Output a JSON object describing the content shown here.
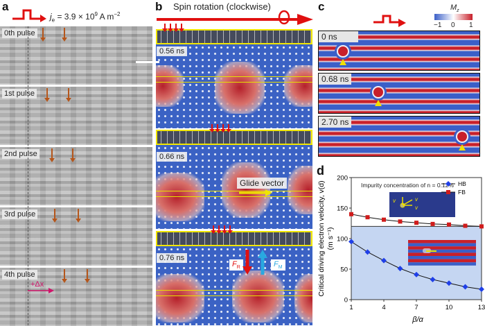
{
  "panel_labels": {
    "a": "a",
    "b": "b",
    "c": "c",
    "d": "d"
  },
  "panel_a": {
    "current": {
      "j": "j",
      "sub": "e",
      "eq": " = 3.9 × 10",
      "exp": "9",
      "unit": " A m",
      "unit_exp": "−2"
    },
    "pulses": [
      "0th pulse",
      "1st pulse",
      "2nd pulse",
      "3rd pulse",
      "4th pulse"
    ],
    "displacement": "+Δx"
  },
  "panel_b": {
    "title": "Spin rotation (clockwise)",
    "times": [
      "0.56 ns",
      "0.66 ns",
      "0.76 ns"
    ],
    "glide_vector": "Glide vector",
    "force_r": {
      "F": "F",
      "sub": "R"
    },
    "force_m": {
      "F": "F",
      "sub": "M"
    },
    "colors": {
      "force_r": "#e01010",
      "force_m": "#29a8e0",
      "highlight": "#f0e600"
    }
  },
  "panel_c": {
    "colorbar": {
      "label": "M",
      "label_sub": "z",
      "ticks": [
        "−1",
        "0",
        "1"
      ],
      "colors": [
        "#3b5fc8",
        "#ffffff",
        "#c8202a"
      ]
    },
    "times": [
      "0 ns",
      "0.68 ns",
      "2.70 ns"
    ]
  },
  "chart_data": {
    "type": "line",
    "title": "",
    "annotation": "Impurity concentration of n = 0.12%",
    "xlabel": "β/α",
    "ylabel": "Critical driving electron velocity, v(d)",
    "ylabel_unit": "(m s⁻¹)",
    "xlim": [
      1,
      13
    ],
    "ylim": [
      0,
      200
    ],
    "xticks": [
      "1",
      "4",
      "7",
      "10",
      "13"
    ],
    "yticks": [
      "0",
      "50",
      "100",
      "150",
      "200"
    ],
    "x": [
      1,
      2.5,
      4,
      5.5,
      7,
      8.5,
      10,
      11.5,
      13
    ],
    "series": [
      {
        "name": "HB",
        "color": "#1f3fe8",
        "marker": "diamond",
        "values": [
          95,
          78,
          64,
          51,
          41,
          33,
          27,
          21,
          17
        ]
      },
      {
        "name": "FB",
        "color": "#d01c1c",
        "marker": "square",
        "values": [
          140,
          135,
          131,
          128,
          126,
          124,
          123,
          121,
          120
        ]
      }
    ],
    "threshold": 120,
    "shaded_region_color": "#c5d6f2",
    "legend": "top-right",
    "inset_labels": {
      "v": "v",
      "d": "d",
      "y": "y",
      "x": "x"
    }
  }
}
